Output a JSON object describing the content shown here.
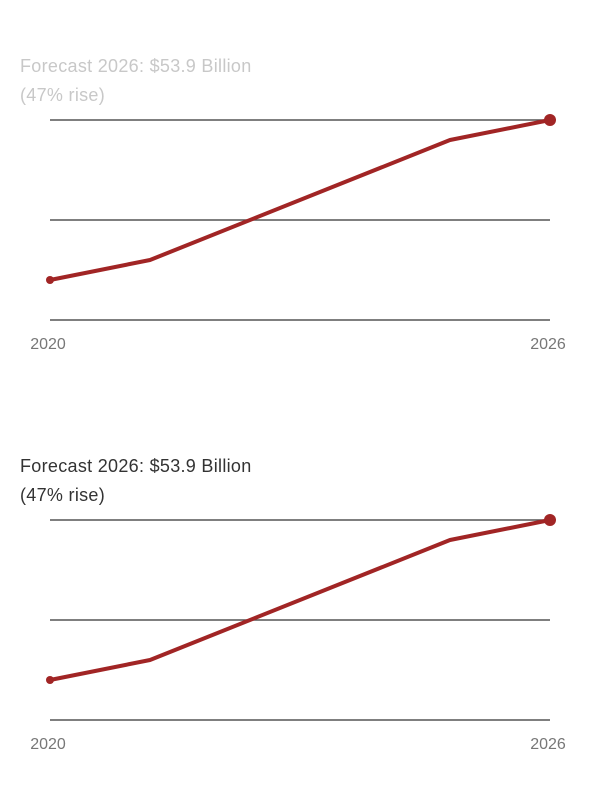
{
  "chart_data": [
    {
      "type": "line",
      "title": "Forecast 2026: $53.9 Billion (47% rise)",
      "x": [
        2020,
        2021.2,
        2024.8,
        2026
      ],
      "series": [
        {
          "name": "Forecast",
          "values": [
            0.4,
            0.6,
            1.8,
            2.0
          ]
        }
      ],
      "xticks": [
        "2020",
        "2026"
      ],
      "xlim": [
        2020,
        2026
      ],
      "ylim": [
        0,
        2
      ],
      "grid": true,
      "color": "#a12525",
      "title_color": "#c8c8c8"
    },
    {
      "type": "line",
      "title": "Forecast 2026: $53.9 Billion (47% rise)",
      "x": [
        2020,
        2021.2,
        2024.8,
        2026
      ],
      "series": [
        {
          "name": "Forecast",
          "values": [
            0.4,
            0.6,
            1.8,
            2.0
          ]
        }
      ],
      "xticks": [
        "2020",
        "2026"
      ],
      "xlim": [
        2020,
        2026
      ],
      "ylim": [
        0,
        2
      ],
      "grid": true,
      "color": "#a12525",
      "title_color": "#333333"
    }
  ]
}
